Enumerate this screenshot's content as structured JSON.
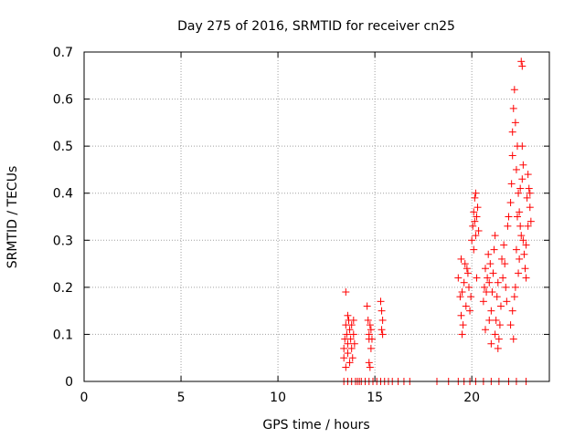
{
  "chart_data": {
    "type": "scatter",
    "title": "Day 275 of 2016, SRMTID for receiver cn25",
    "xlabel": "GPS time / hours",
    "ylabel": "SRMTID / TECUs",
    "xlim": [
      0,
      24
    ],
    "ylim": [
      0,
      0.7
    ],
    "xticks": [
      0,
      5,
      10,
      15,
      20
    ],
    "yticks": [
      0,
      0.1,
      0.2,
      0.3,
      0.4,
      0.5,
      0.6,
      0.7
    ],
    "xtick_labels": [
      "0",
      "5",
      "10",
      "15",
      "20"
    ],
    "ytick_labels": [
      "0",
      "0.1",
      "0.2",
      "0.3",
      "0.4",
      "0.5",
      "0.6",
      "0.7"
    ],
    "grid": true,
    "marker": "+",
    "color": "#ff0000",
    "points": [
      [
        13.4,
        0.05
      ],
      [
        13.4,
        0.07
      ],
      [
        13.45,
        0.09
      ],
      [
        13.5,
        0.12
      ],
      [
        13.5,
        0.19
      ],
      [
        13.55,
        0.1
      ],
      [
        13.6,
        0.08
      ],
      [
        13.6,
        0.06
      ],
      [
        13.65,
        0.13
      ],
      [
        13.7,
        0.11
      ],
      [
        13.7,
        0.04
      ],
      [
        13.75,
        0.09
      ],
      [
        13.8,
        0.07
      ],
      [
        13.8,
        0.12
      ],
      [
        13.85,
        0.05
      ],
      [
        13.9,
        0.1
      ],
      [
        13.9,
        0.13
      ],
      [
        13.95,
        0.08
      ],
      [
        13.5,
        0.03
      ],
      [
        13.6,
        0.14
      ],
      [
        14.6,
        0.16
      ],
      [
        14.65,
        0.13
      ],
      [
        14.7,
        0.1
      ],
      [
        14.7,
        0.09
      ],
      [
        14.75,
        0.12
      ],
      [
        14.8,
        0.11
      ],
      [
        14.8,
        0.07
      ],
      [
        14.7,
        0.04
      ],
      [
        14.75,
        0.03
      ],
      [
        14.85,
        0.09
      ],
      [
        15.3,
        0.17
      ],
      [
        15.35,
        0.15
      ],
      [
        15.4,
        0.13
      ],
      [
        15.35,
        0.11
      ],
      [
        15.4,
        0.1
      ],
      [
        19.3,
        0.22
      ],
      [
        19.4,
        0.18
      ],
      [
        19.45,
        0.14
      ],
      [
        19.5,
        0.19
      ],
      [
        19.55,
        0.12
      ],
      [
        19.6,
        0.21
      ],
      [
        19.65,
        0.25
      ],
      [
        19.7,
        0.16
      ],
      [
        19.75,
        0.24
      ],
      [
        19.8,
        0.23
      ],
      [
        19.85,
        0.2
      ],
      [
        19.9,
        0.15
      ],
      [
        19.95,
        0.18
      ],
      [
        19.5,
        0.1
      ],
      [
        19.45,
        0.26
      ],
      [
        20.0,
        0.3
      ],
      [
        20.05,
        0.33
      ],
      [
        20.1,
        0.36
      ],
      [
        20.15,
        0.39
      ],
      [
        20.2,
        0.4
      ],
      [
        20.25,
        0.35
      ],
      [
        20.3,
        0.37
      ],
      [
        20.2,
        0.31
      ],
      [
        20.1,
        0.28
      ],
      [
        20.35,
        0.32
      ],
      [
        20.15,
        0.34
      ],
      [
        20.25,
        0.22
      ],
      [
        20.6,
        0.17
      ],
      [
        20.65,
        0.2
      ],
      [
        20.7,
        0.24
      ],
      [
        20.75,
        0.19
      ],
      [
        20.8,
        0.22
      ],
      [
        20.85,
        0.27
      ],
      [
        20.9,
        0.21
      ],
      [
        20.95,
        0.25
      ],
      [
        21.0,
        0.15
      ],
      [
        21.05,
        0.19
      ],
      [
        21.1,
        0.23
      ],
      [
        21.15,
        0.28
      ],
      [
        21.2,
        0.31
      ],
      [
        21.25,
        0.13
      ],
      [
        21.3,
        0.18
      ],
      [
        21.35,
        0.21
      ],
      [
        21.4,
        0.09
      ],
      [
        21.45,
        0.12
      ],
      [
        21.5,
        0.16
      ],
      [
        21.55,
        0.26
      ],
      [
        21.6,
        0.22
      ],
      [
        21.65,
        0.29
      ],
      [
        21.7,
        0.25
      ],
      [
        21.75,
        0.2
      ],
      [
        21.8,
        0.17
      ],
      [
        21.85,
        0.33
      ],
      [
        21.9,
        0.35
      ],
      [
        20.7,
        0.11
      ],
      [
        20.9,
        0.13
      ],
      [
        21.0,
        0.08
      ],
      [
        21.2,
        0.1
      ],
      [
        21.35,
        0.07
      ],
      [
        22.0,
        0.38
      ],
      [
        22.05,
        0.42
      ],
      [
        22.1,
        0.48
      ],
      [
        22.1,
        0.53
      ],
      [
        22.15,
        0.58
      ],
      [
        22.2,
        0.62
      ],
      [
        22.25,
        0.55
      ],
      [
        22.3,
        0.45
      ],
      [
        22.35,
        0.5
      ],
      [
        22.4,
        0.4
      ],
      [
        22.45,
        0.36
      ],
      [
        22.5,
        0.33
      ],
      [
        22.55,
        0.68
      ],
      [
        22.6,
        0.67
      ],
      [
        22.6,
        0.43
      ],
      [
        22.65,
        0.3
      ],
      [
        22.7,
        0.27
      ],
      [
        22.75,
        0.24
      ],
      [
        22.8,
        0.22
      ],
      [
        22.85,
        0.39
      ],
      [
        22.9,
        0.44
      ],
      [
        22.95,
        0.41
      ],
      [
        23.0,
        0.37
      ],
      [
        23.05,
        0.34
      ],
      [
        22.3,
        0.28
      ],
      [
        22.4,
        0.23
      ],
      [
        22.2,
        0.18
      ],
      [
        22.1,
        0.15
      ],
      [
        22.0,
        0.12
      ],
      [
        22.15,
        0.09
      ],
      [
        22.25,
        0.2
      ],
      [
        22.45,
        0.26
      ],
      [
        22.55,
        0.31
      ],
      [
        22.65,
        0.46
      ],
      [
        22.35,
        0.35
      ],
      [
        22.5,
        0.41
      ],
      [
        22.8,
        0.29
      ],
      [
        22.9,
        0.33
      ],
      [
        23.0,
        0.4
      ],
      [
        22.6,
        0.5
      ],
      [
        13.4,
        0
      ],
      [
        13.6,
        0
      ],
      [
        13.8,
        0
      ],
      [
        14.0,
        0
      ],
      [
        14.1,
        0
      ],
      [
        14.2,
        0
      ],
      [
        14.3,
        0
      ],
      [
        14.5,
        0
      ],
      [
        14.7,
        0
      ],
      [
        14.9,
        0
      ],
      [
        15.1,
        0
      ],
      [
        15.3,
        0
      ],
      [
        15.5,
        0
      ],
      [
        15.7,
        0
      ],
      [
        15.9,
        0
      ],
      [
        16.2,
        0
      ],
      [
        16.5,
        0
      ],
      [
        16.8,
        0
      ],
      [
        18.2,
        0
      ],
      [
        18.8,
        0
      ],
      [
        19.3,
        0
      ],
      [
        19.6,
        0
      ],
      [
        19.9,
        0
      ],
      [
        20.2,
        0
      ],
      [
        20.6,
        0
      ],
      [
        21.0,
        0
      ],
      [
        21.4,
        0
      ],
      [
        21.9,
        0
      ],
      [
        22.3,
        0
      ],
      [
        22.8,
        0
      ]
    ]
  }
}
